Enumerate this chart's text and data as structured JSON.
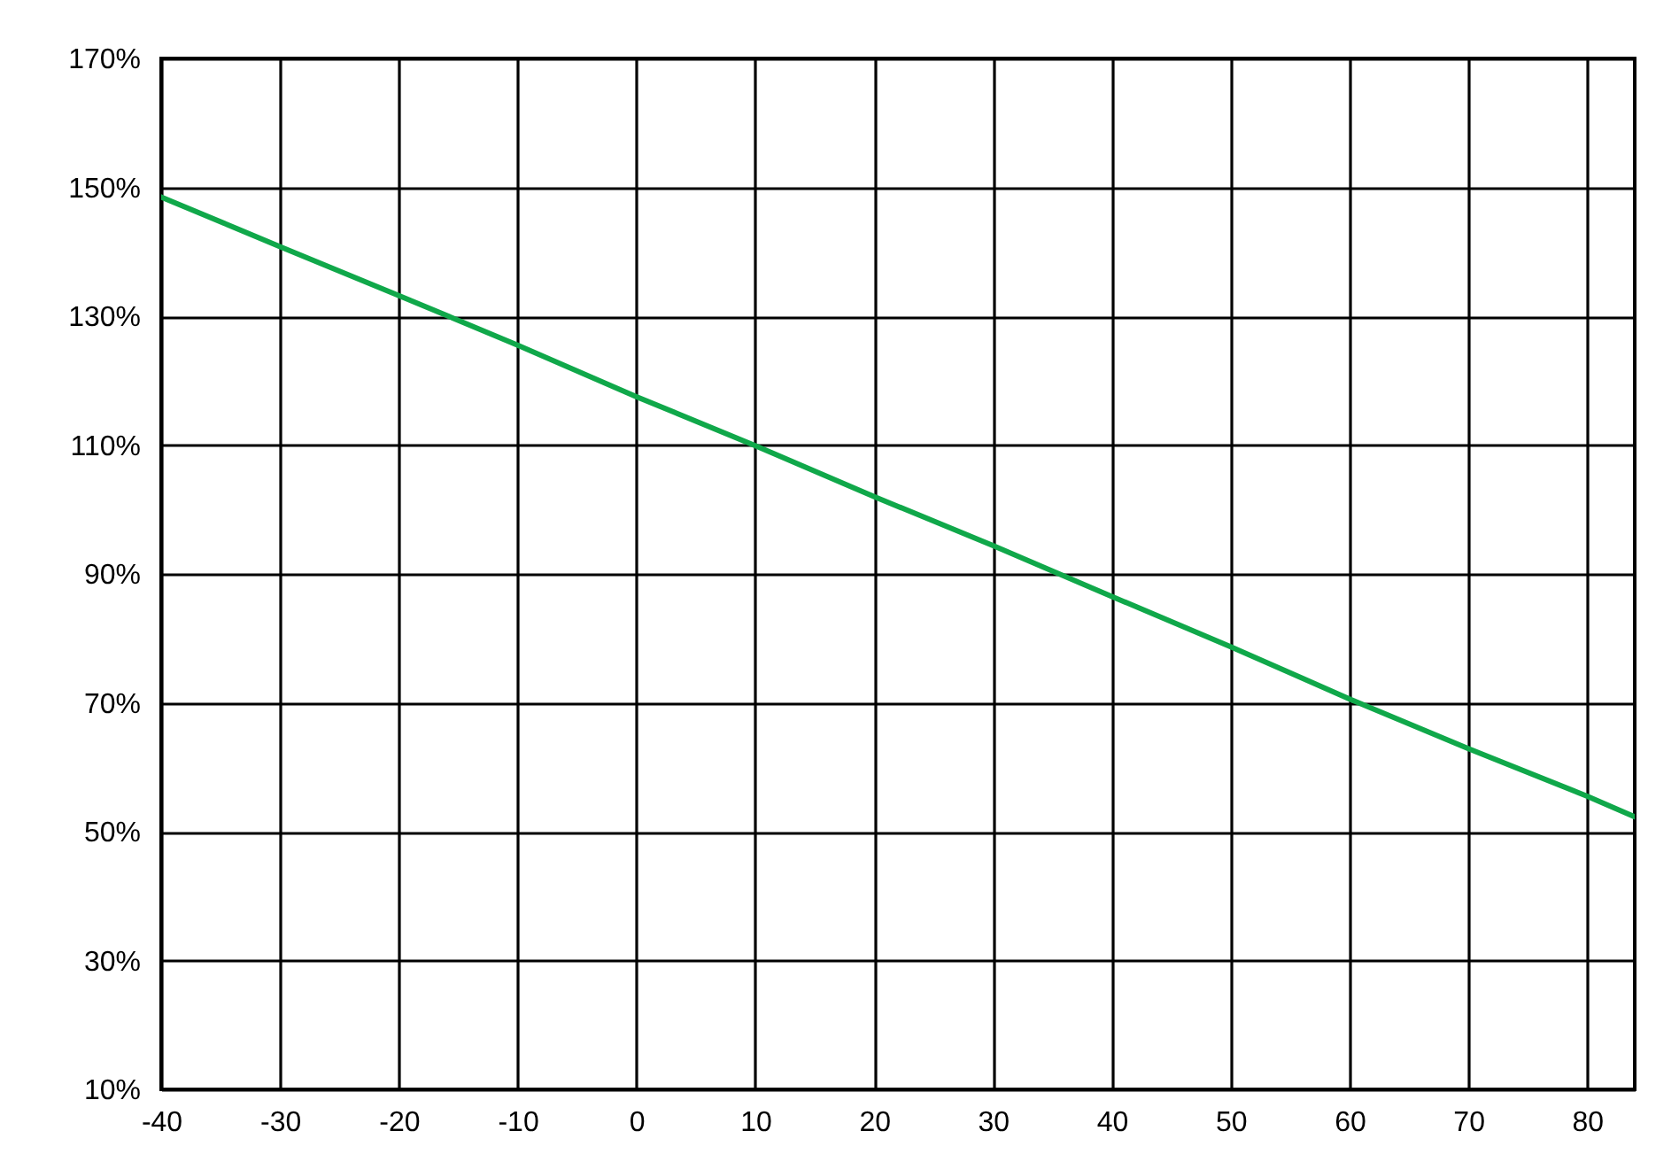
{
  "chart_data": {
    "type": "line",
    "x": [
      -40,
      -30,
      -20,
      -10,
      0,
      10,
      20,
      30,
      40,
      50,
      60,
      70,
      80,
      84
    ],
    "series": [
      {
        "color": "#10a84a",
        "values": [
          148.5,
          140.8,
          133.2,
          125.5,
          117.5,
          109.9,
          102,
          94.4,
          86.5,
          78.7,
          70.6,
          62.9,
          55.5,
          52.3
        ]
      }
    ],
    "xlim": [
      -40,
      84
    ],
    "ylim": [
      10,
      170
    ],
    "xticks": [
      -40,
      -30,
      -20,
      -10,
      0,
      10,
      20,
      30,
      40,
      50,
      60,
      70,
      80
    ],
    "yticks": [
      {
        "value": 10,
        "label": "10%"
      },
      {
        "value": 30,
        "label": "30%"
      },
      {
        "value": 50,
        "label": "50%"
      },
      {
        "value": 70,
        "label": "70%"
      },
      {
        "value": 90,
        "label": "90%"
      },
      {
        "value": 110,
        "label": "110%"
      },
      {
        "value": 130,
        "label": "130%"
      },
      {
        "value": 150,
        "label": "150%"
      },
      {
        "value": 170,
        "label": "170%"
      }
    ],
    "grid": true
  }
}
